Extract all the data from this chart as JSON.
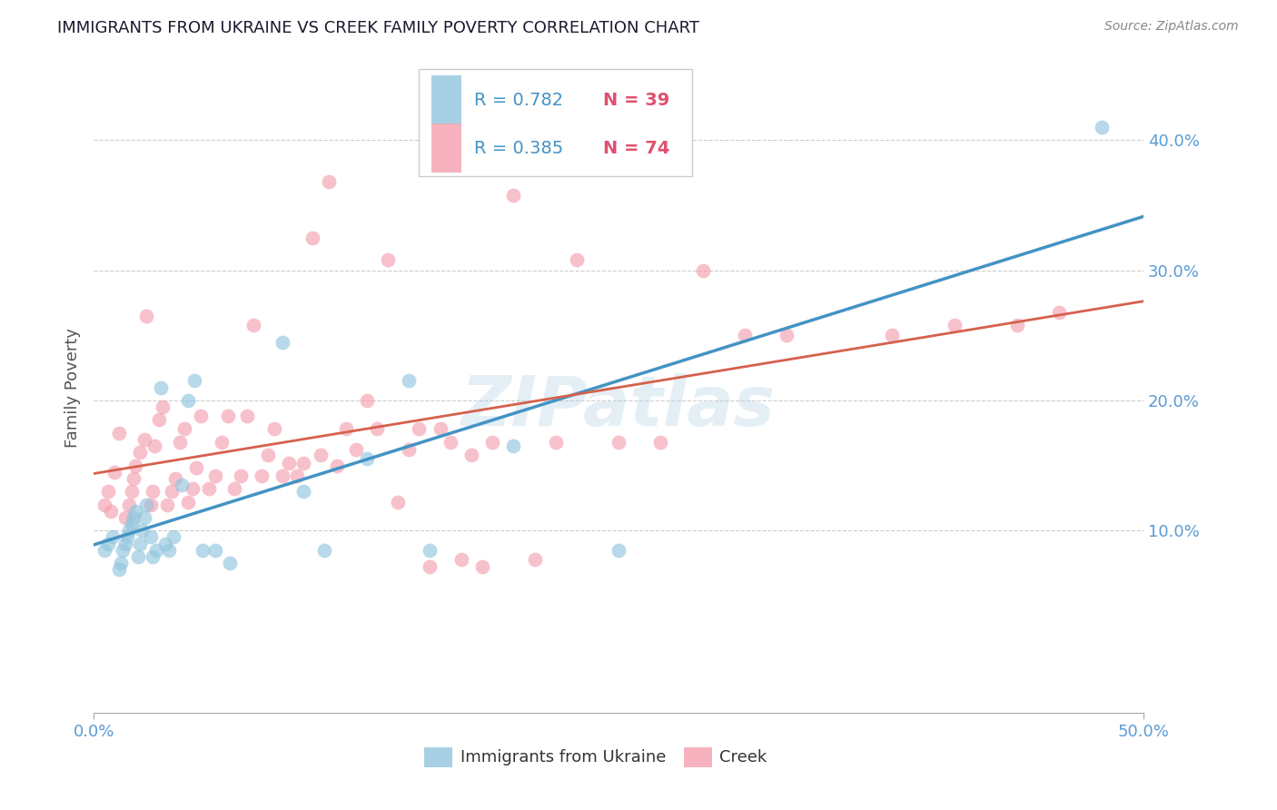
{
  "title": "IMMIGRANTS FROM UKRAINE VS CREEK FAMILY POVERTY CORRELATION CHART",
  "source": "Source: ZipAtlas.com",
  "tick_color": "#5b9bd5",
  "ylabel": "Family Poverty",
  "xlim": [
    0,
    0.5
  ],
  "ylim": [
    -0.04,
    0.46
  ],
  "xticks": [
    0.0,
    0.5
  ],
  "yticks_right": [
    0.1,
    0.2,
    0.3,
    0.4
  ],
  "ytick_labels_right": [
    "10.0%",
    "20.0%",
    "30.0%",
    "40.0%"
  ],
  "xtick_labels": [
    "0.0%",
    "50.0%"
  ],
  "legend_r1": "R = 0.782",
  "legend_n1": "N = 39",
  "legend_r2": "R = 0.385",
  "legend_n2": "N = 74",
  "blue_color": "#92c5de",
  "pink_color": "#f4a0b0",
  "blue_line_color": "#4393c3",
  "pink_line_color": "#d6604d",
  "watermark": "ZIPatlas",
  "ukraine_x": [
    0.005,
    0.007,
    0.009,
    0.012,
    0.013,
    0.014,
    0.015,
    0.016,
    0.017,
    0.018,
    0.019,
    0.02,
    0.021,
    0.022,
    0.023,
    0.024,
    0.025,
    0.027,
    0.028,
    0.03,
    0.032,
    0.034,
    0.036,
    0.038,
    0.042,
    0.045,
    0.048,
    0.052,
    0.058,
    0.065,
    0.09,
    0.1,
    0.11,
    0.13,
    0.15,
    0.16,
    0.2,
    0.25,
    0.48
  ],
  "ukraine_y": [
    0.085,
    0.09,
    0.095,
    0.07,
    0.075,
    0.085,
    0.09,
    0.095,
    0.1,
    0.105,
    0.11,
    0.115,
    0.08,
    0.09,
    0.1,
    0.11,
    0.12,
    0.095,
    0.08,
    0.085,
    0.21,
    0.09,
    0.085,
    0.095,
    0.135,
    0.2,
    0.215,
    0.085,
    0.085,
    0.075,
    0.245,
    0.13,
    0.085,
    0.155,
    0.215,
    0.085,
    0.165,
    0.085,
    0.41
  ],
  "creek_x": [
    0.005,
    0.007,
    0.008,
    0.01,
    0.012,
    0.015,
    0.017,
    0.018,
    0.019,
    0.02,
    0.022,
    0.024,
    0.025,
    0.027,
    0.028,
    0.029,
    0.031,
    0.033,
    0.035,
    0.037,
    0.039,
    0.041,
    0.043,
    0.045,
    0.047,
    0.049,
    0.051,
    0.055,
    0.058,
    0.061,
    0.064,
    0.067,
    0.07,
    0.073,
    0.076,
    0.08,
    0.083,
    0.086,
    0.09,
    0.093,
    0.097,
    0.1,
    0.104,
    0.108,
    0.112,
    0.116,
    0.12,
    0.125,
    0.13,
    0.135,
    0.14,
    0.145,
    0.15,
    0.155,
    0.16,
    0.165,
    0.17,
    0.175,
    0.18,
    0.185,
    0.19,
    0.2,
    0.21,
    0.22,
    0.23,
    0.25,
    0.27,
    0.29,
    0.31,
    0.33,
    0.38,
    0.41,
    0.44,
    0.46
  ],
  "creek_y": [
    0.12,
    0.13,
    0.115,
    0.145,
    0.175,
    0.11,
    0.12,
    0.13,
    0.14,
    0.15,
    0.16,
    0.17,
    0.265,
    0.12,
    0.13,
    0.165,
    0.185,
    0.195,
    0.12,
    0.13,
    0.14,
    0.168,
    0.178,
    0.122,
    0.132,
    0.148,
    0.188,
    0.132,
    0.142,
    0.168,
    0.188,
    0.132,
    0.142,
    0.188,
    0.258,
    0.142,
    0.158,
    0.178,
    0.142,
    0.152,
    0.142,
    0.152,
    0.325,
    0.158,
    0.368,
    0.15,
    0.178,
    0.162,
    0.2,
    0.178,
    0.308,
    0.122,
    0.162,
    0.178,
    0.072,
    0.178,
    0.168,
    0.078,
    0.158,
    0.072,
    0.168,
    0.358,
    0.078,
    0.168,
    0.308,
    0.168,
    0.168,
    0.3,
    0.25,
    0.25,
    0.25,
    0.258,
    0.258,
    0.268
  ]
}
